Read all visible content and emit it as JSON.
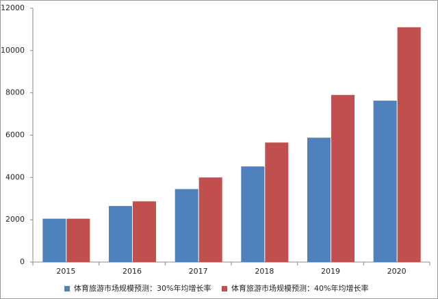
{
  "chart_data": {
    "type": "bar",
    "categories": [
      "2015",
      "2016",
      "2017",
      "2018",
      "2019",
      "2020"
    ],
    "series": [
      {
        "name": "体育旅游市场规模预测：30%年均增长率",
        "color": "#4f81bd",
        "values": [
          2050,
          2650,
          3450,
          4520,
          5880,
          7630
        ]
      },
      {
        "name": "体育旅游市场规模预测：40%年均增长率",
        "color": "#c0504d",
        "values": [
          2050,
          2870,
          4000,
          5650,
          7900,
          11100
        ]
      }
    ],
    "ylim": [
      0,
      12000
    ],
    "yticks": [
      0,
      2000,
      4000,
      6000,
      8000,
      10000,
      12000
    ],
    "grid": false,
    "legend": "bottom"
  }
}
